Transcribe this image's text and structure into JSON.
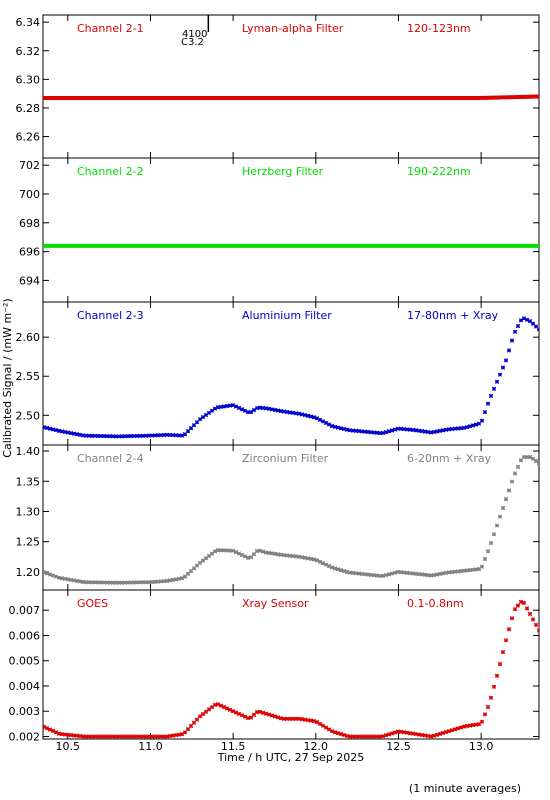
{
  "chart_data": {
    "type": "scatter",
    "xlabel": "Time / h UTC, 27 Sep 2025",
    "ylabel": "Calibrated Signal / (mW m⁻²)",
    "footnote": "(1 minute averages)",
    "xlim": [
      10.35,
      13.35
    ],
    "xticks": [
      10.5,
      11.0,
      11.5,
      12.0,
      12.5,
      13.0
    ],
    "xtick_labels": [
      "10.5",
      "11.0",
      "11.5",
      "12.0",
      "12.5",
      "13.0"
    ],
    "event_marker": {
      "x": 11.35,
      "label_top": "4100",
      "label_bottom": "C3.2"
    },
    "panels": [
      {
        "channel": "Channel 2-1",
        "filter": "Lyman-alpha Filter",
        "band": "120-123nm",
        "color": "#dd0000",
        "marker": "dot",
        "ylim": [
          6.245,
          6.345
        ],
        "yticks": [
          6.26,
          6.28,
          6.3,
          6.32,
          6.34
        ],
        "ytick_labels": [
          "6.26",
          "6.28",
          "6.30",
          "6.32",
          "6.34"
        ],
        "x": [
          10.35,
          11.0,
          11.5,
          12.0,
          12.5,
          13.0,
          13.35
        ],
        "y": [
          6.287,
          6.287,
          6.287,
          6.287,
          6.287,
          6.287,
          6.288
        ]
      },
      {
        "channel": "Channel 2-2",
        "filter": "Herzberg Filter",
        "band": "190-222nm",
        "color": "#00dd00",
        "marker": "dot",
        "ylim": [
          692.5,
          702.5
        ],
        "yticks": [
          694,
          696,
          698,
          700,
          702
        ],
        "ytick_labels": [
          "694",
          "696",
          "698",
          "700",
          "702"
        ],
        "x": [
          10.35,
          11.0,
          11.5,
          12.0,
          12.5,
          13.0,
          13.35
        ],
        "y": [
          696.4,
          696.4,
          696.4,
          696.4,
          696.4,
          696.4,
          696.4
        ]
      },
      {
        "channel": "Channel 2-3",
        "filter": "Aluminium Filter",
        "band": "17-80nm + Xray",
        "color": "#0000cc",
        "marker": "star",
        "ylim": [
          2.462,
          2.645
        ],
        "yticks": [
          2.5,
          2.55,
          2.6
        ],
        "ytick_labels": [
          "2.50",
          "2.55",
          "2.60"
        ],
        "x": [
          10.35,
          10.45,
          10.6,
          10.8,
          11.0,
          11.1,
          11.2,
          11.3,
          11.4,
          11.5,
          11.6,
          11.65,
          11.7,
          11.8,
          11.9,
          12.0,
          12.1,
          12.2,
          12.3,
          12.4,
          12.5,
          12.6,
          12.7,
          12.8,
          12.9,
          13.0,
          13.05,
          13.1,
          13.15,
          13.2,
          13.25,
          13.3,
          13.35
        ],
        "y": [
          2.485,
          2.48,
          2.474,
          2.473,
          2.474,
          2.475,
          2.474,
          2.495,
          2.51,
          2.513,
          2.503,
          2.51,
          2.509,
          2.505,
          2.502,
          2.497,
          2.486,
          2.481,
          2.479,
          2.477,
          2.483,
          2.481,
          2.478,
          2.482,
          2.484,
          2.49,
          2.52,
          2.545,
          2.57,
          2.605,
          2.625,
          2.62,
          2.61
        ]
      },
      {
        "channel": "Channel 2-4",
        "filter": "Zirconium Filter",
        "band": "6-20nm + Xray",
        "color": "#808080",
        "marker": "star",
        "ylim": [
          1.17,
          1.41
        ],
        "yticks": [
          1.2,
          1.25,
          1.3,
          1.35,
          1.4
        ],
        "ytick_labels": [
          "1.20",
          "1.25",
          "1.30",
          "1.35",
          "1.40"
        ],
        "x": [
          10.35,
          10.45,
          10.6,
          10.8,
          11.0,
          11.1,
          11.2,
          11.3,
          11.4,
          11.5,
          11.6,
          11.65,
          11.7,
          11.8,
          11.9,
          12.0,
          12.1,
          12.2,
          12.3,
          12.4,
          12.5,
          12.6,
          12.7,
          12.8,
          12.9,
          13.0,
          13.05,
          13.1,
          13.15,
          13.2,
          13.25,
          13.3,
          13.35
        ],
        "y": [
          1.2,
          1.19,
          1.183,
          1.182,
          1.183,
          1.185,
          1.19,
          1.215,
          1.236,
          1.235,
          1.222,
          1.236,
          1.232,
          1.228,
          1.225,
          1.22,
          1.207,
          1.199,
          1.196,
          1.193,
          1.2,
          1.197,
          1.194,
          1.199,
          1.202,
          1.205,
          1.24,
          1.28,
          1.32,
          1.36,
          1.39,
          1.39,
          1.38
        ]
      },
      {
        "channel": "GOES",
        "filter": "Xray Sensor",
        "band": "0.1-0.8nm",
        "color": "#dd0000",
        "marker": "star",
        "ylim": [
          0.0019,
          0.0078
        ],
        "yticks": [
          0.002,
          0.003,
          0.004,
          0.005,
          0.006,
          0.007
        ],
        "ytick_labels": [
          "0.002",
          "0.003",
          "0.004",
          "0.005",
          "0.006",
          "0.007"
        ],
        "x": [
          10.35,
          10.45,
          10.6,
          10.8,
          11.0,
          11.1,
          11.2,
          11.3,
          11.4,
          11.5,
          11.6,
          11.65,
          11.7,
          11.8,
          11.9,
          12.0,
          12.1,
          12.2,
          12.3,
          12.4,
          12.5,
          12.6,
          12.7,
          12.8,
          12.9,
          13.0,
          13.05,
          13.1,
          13.15,
          13.2,
          13.25,
          13.3,
          13.35
        ],
        "y": [
          0.0024,
          0.0021,
          0.002,
          0.002,
          0.002,
          0.002,
          0.0021,
          0.0028,
          0.0033,
          0.003,
          0.0027,
          0.003,
          0.0029,
          0.0027,
          0.0027,
          0.0026,
          0.0022,
          0.002,
          0.002,
          0.002,
          0.0022,
          0.0021,
          0.002,
          0.0022,
          0.0024,
          0.0025,
          0.0033,
          0.0045,
          0.0058,
          0.007,
          0.0074,
          0.0068,
          0.0062
        ]
      }
    ]
  }
}
